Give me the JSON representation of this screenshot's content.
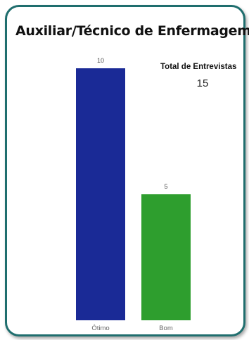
{
  "title": "Auxiliar/Técnico de Enfermagem",
  "kpi": {
    "label": "Total de Entrevistas",
    "value": "15"
  },
  "chart_data": {
    "type": "bar",
    "categories": [
      "Ótimo",
      "Bom"
    ],
    "values": [
      10,
      5
    ],
    "colors": [
      "#1a2a96",
      "#2e9e2e"
    ],
    "ylim": [
      0,
      10
    ]
  }
}
